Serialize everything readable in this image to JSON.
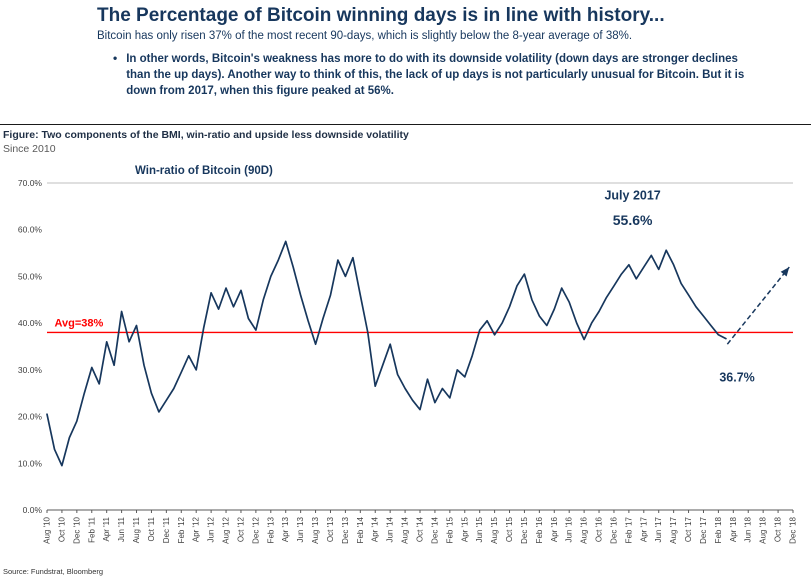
{
  "header": {
    "title": "The Percentage of Bitcoin winning days is in line with history...",
    "subtitle": "Bitcoin has only risen 37% of the most recent 90-days, which is slightly below the 8-year average of 38%.",
    "bullet": "In other words, Bitcoin's weakness has more to do with its downside volatility (down days are stronger declines than the up days).  Another way to think of this, the lack of up days is not particularly unusual for Bitcoin.  But it is down from 2017, when this figure peaked at 56%."
  },
  "figure": {
    "caption": "Figure: Two components of the BMI, win-ratio and upside less downside volatility",
    "subcaption": "Since 2010"
  },
  "source": "Source: Fundstrat, Bloomberg",
  "colors": {
    "navy": "#17375d",
    "red": "#ff0000",
    "axis_text": "#404040",
    "axis_line": "#595959",
    "top_border": "#bfbfbf"
  },
  "chart_data": {
    "type": "line",
    "title": "Win-ratio of Bitcoin (90D)",
    "ylim": [
      0,
      70
    ],
    "ytick_step": 10,
    "ytick_format": "percent_one_decimal",
    "x_range_months": [
      0,
      100
    ],
    "x_unit": "months since Aug 2010, labels every 2 months",
    "x_tick_labels": [
      "Aug '10",
      "Oct '10",
      "Dec '10",
      "Feb '11",
      "Apr '11",
      "Jun '11",
      "Aug '11",
      "Oct '11",
      "Dec '11",
      "Feb '12",
      "Apr '12",
      "Jun '12",
      "Aug '12",
      "Oct '12",
      "Dec '12",
      "Feb '13",
      "Apr '13",
      "Jun '13",
      "Aug '13",
      "Oct '13",
      "Dec '13",
      "Feb '14",
      "Apr '14",
      "Jun '14",
      "Aug '14",
      "Oct '14",
      "Dec '14",
      "Feb '15",
      "Apr '15",
      "Jun '15",
      "Aug '15",
      "Oct '15",
      "Dec '15",
      "Feb '16",
      "Apr '16",
      "Jun '16",
      "Aug '16",
      "Oct '16",
      "Dec '16",
      "Feb '17",
      "Apr '17",
      "Jun '17",
      "Aug '17",
      "Oct '17",
      "Dec '17",
      "Feb '18",
      "Apr '18",
      "Jun '18",
      "Aug '18",
      "Oct '18",
      "Dec '18"
    ],
    "series": [
      {
        "name": "Win-ratio of Bitcoin (90D)",
        "color": "#17375d",
        "x_step_months": 1,
        "x_start_month": 0,
        "values": [
          20.5,
          13.0,
          9.5,
          15.5,
          19.0,
          25.0,
          30.5,
          27.0,
          36.0,
          31.0,
          42.5,
          36.0,
          39.5,
          31.0,
          25.0,
          21.0,
          23.5,
          26.0,
          29.5,
          33.0,
          30.0,
          39.0,
          46.5,
          43.0,
          47.5,
          43.5,
          47.0,
          41.0,
          38.5,
          45.0,
          50.0,
          53.5,
          57.5,
          52.0,
          46.0,
          40.5,
          35.5,
          41.0,
          46.0,
          53.5,
          50.0,
          54.0,
          46.0,
          38.0,
          26.5,
          31.0,
          35.5,
          29.0,
          26.0,
          23.5,
          21.5,
          28.0,
          23.0,
          26.0,
          24.0,
          30.0,
          28.5,
          33.0,
          38.5,
          40.5,
          37.5,
          40.0,
          43.5,
          48.0,
          50.5,
          45.0,
          41.5,
          39.5,
          43.0,
          47.5,
          44.5,
          40.0,
          36.5,
          40.0,
          42.5,
          45.5,
          48.0,
          50.5,
          52.5,
          49.5,
          52.0,
          54.5,
          51.5,
          55.6,
          52.5,
          48.5,
          46.0,
          43.5,
          41.5,
          39.5,
          37.5,
          36.7
        ]
      }
    ],
    "average_line": {
      "value": 38,
      "label": "Avg=38%",
      "color": "#ff0000"
    },
    "annotations": [
      {
        "id": "july-2017-label",
        "text": "July 2017",
        "x_month": 78.5,
        "y_value": 66.5,
        "size": 12.5
      },
      {
        "id": "peak-value-label",
        "text": "55.6%",
        "x_month": 78.5,
        "y_value": 61.0,
        "size": 14
      },
      {
        "id": "current-value-label",
        "text": "36.7%",
        "x_month": 92.5,
        "y_value": 27.5,
        "size": 12.5
      }
    ],
    "projection_arrow": {
      "style": "dashed",
      "from": {
        "x_month": 91.2,
        "y_value": 35.5
      },
      "to": {
        "x_month": 99.5,
        "y_value": 52.0
      }
    }
  }
}
